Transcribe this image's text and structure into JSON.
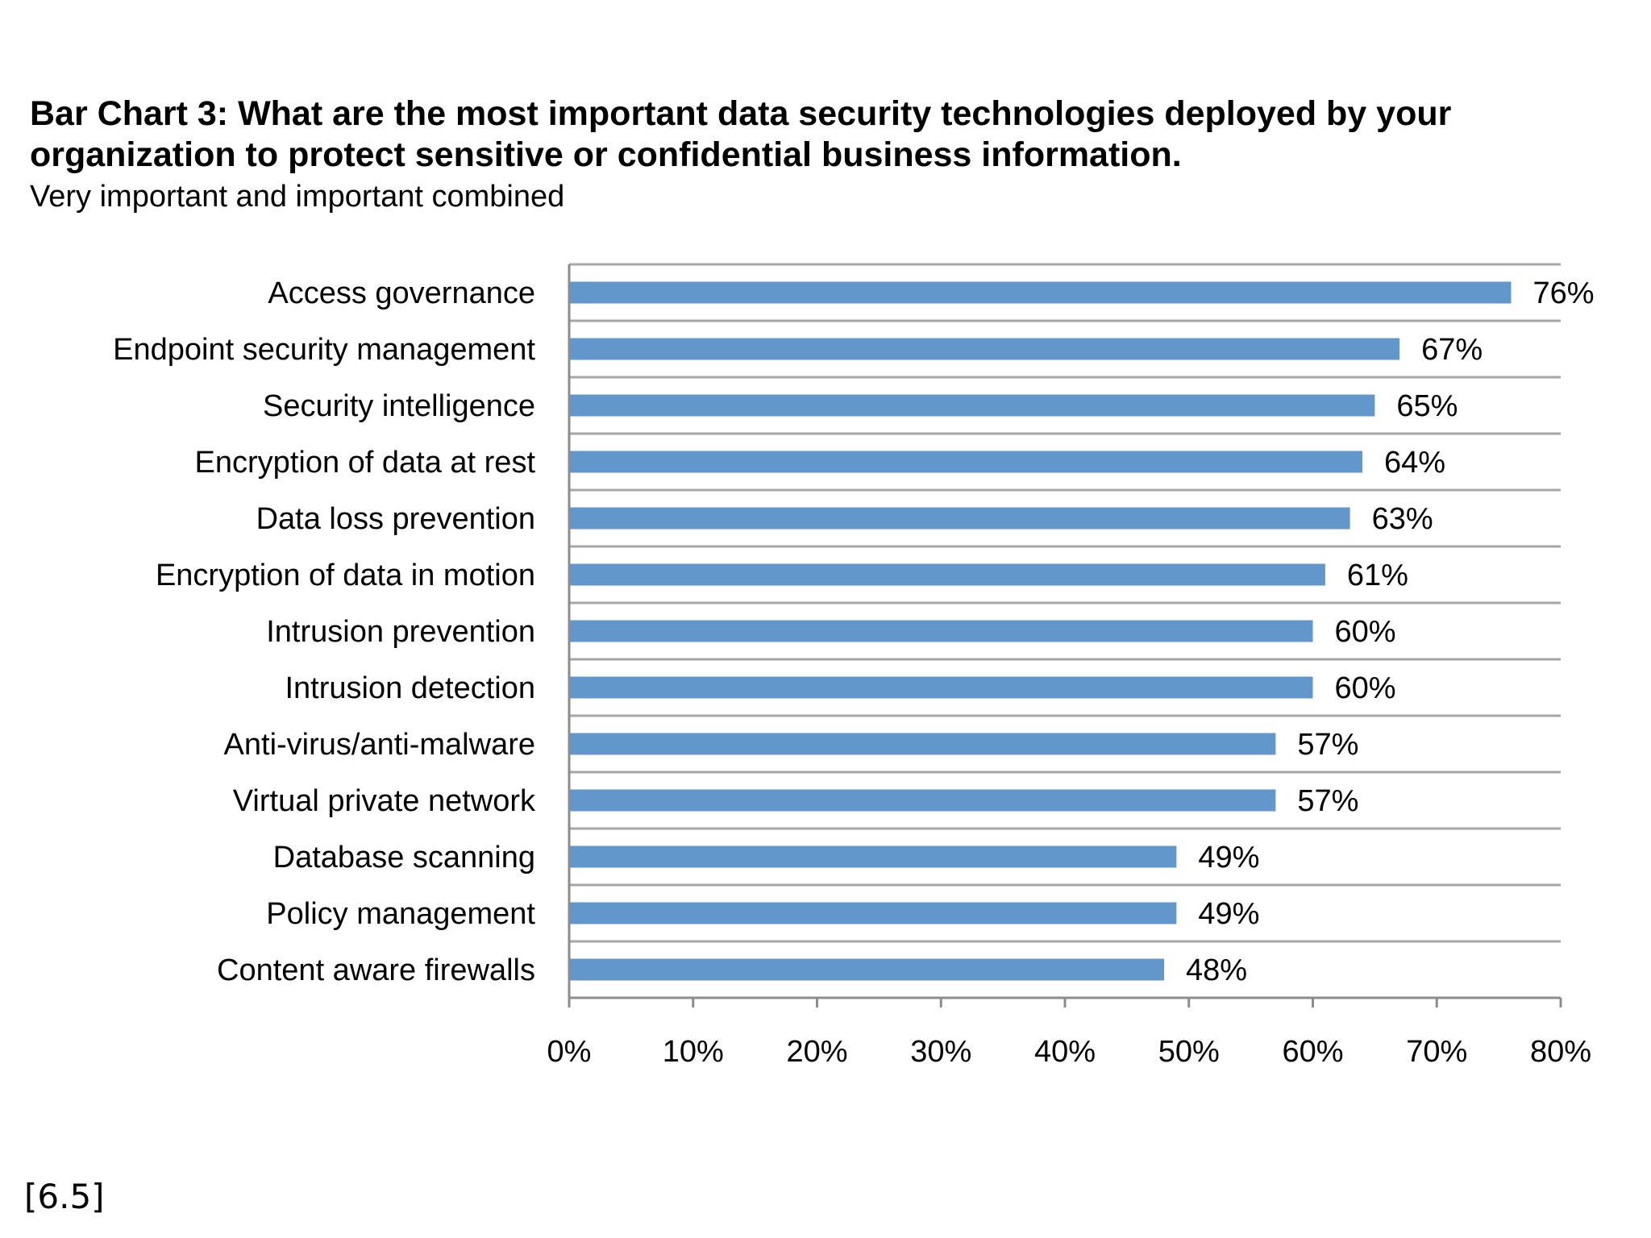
{
  "title": "Bar Chart 3: What are the most important data security technologies deployed by your organization to protect sensitive or confidential business information.",
  "subtitle": "Very important and important combined",
  "slide_ref": "[6.5]",
  "colors": {
    "bar": "#6297CC",
    "gridline": "#A6A6A6",
    "axis": "#8C8C8C",
    "text": "#000000"
  },
  "chart_data": {
    "type": "bar",
    "orientation": "horizontal",
    "title": "Bar Chart 3: What are the most important data security technologies deployed by your organization to protect sensitive or confidential business information.",
    "subtitle": "Very important and important combined",
    "categories": [
      "Access governance",
      "Endpoint security management",
      "Security intelligence",
      "Encryption of data at rest",
      "Data loss prevention",
      "Encryption of data in motion",
      "Intrusion prevention",
      "Intrusion detection",
      "Anti-virus/anti-malware",
      "Virtual private network",
      "Database scanning",
      "Policy management",
      "Content aware firewalls"
    ],
    "values": [
      76,
      67,
      65,
      64,
      63,
      61,
      60,
      60,
      57,
      57,
      49,
      49,
      48
    ],
    "value_labels": [
      "76%",
      "67%",
      "65%",
      "64%",
      "63%",
      "61%",
      "60%",
      "60%",
      "57%",
      "57%",
      "49%",
      "49%",
      "48%"
    ],
    "xlim": [
      0,
      80
    ],
    "x_ticks": [
      0,
      10,
      20,
      30,
      40,
      50,
      60,
      70,
      80
    ],
    "x_tick_labels": [
      "0%",
      "10%",
      "20%",
      "30%",
      "40%",
      "50%",
      "60%",
      "70%",
      "80%"
    ],
    "xlabel": "",
    "ylabel": "",
    "grid": true,
    "legend": "none"
  }
}
